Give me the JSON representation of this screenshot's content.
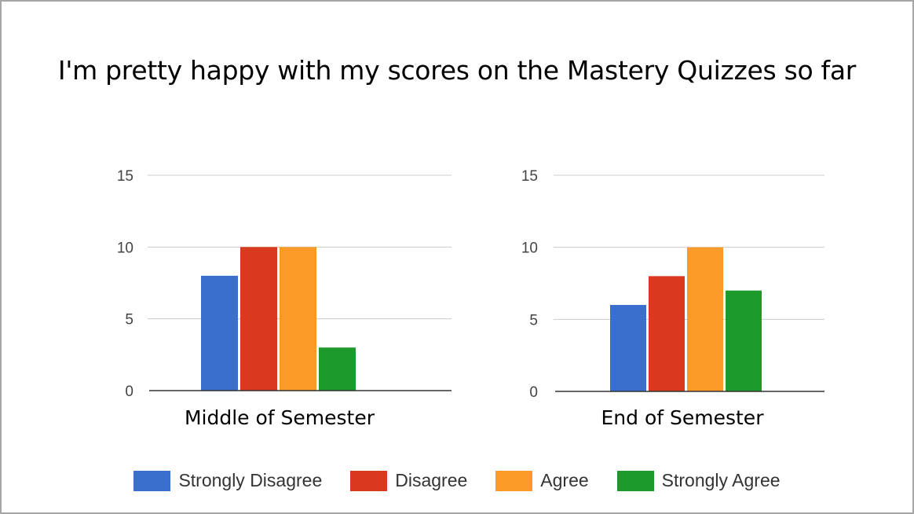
{
  "chart_data": {
    "type": "bar",
    "title": "I'm pretty happy with my scores on the Mastery Quizzes so far",
    "legend_position": "bottom",
    "grid": true,
    "series_names": [
      "Strongly Disagree",
      "Disagree",
      "Agree",
      "Strongly Agree"
    ],
    "colors": [
      "#3b6fcf",
      "#d9391f",
      "#fb9a27",
      "#1d9a2b"
    ],
    "panels": [
      {
        "category": "Middle of Semester",
        "ylim": [
          0,
          15
        ],
        "yticks": [
          "0",
          "5",
          "10",
          "15"
        ],
        "values": [
          8,
          10,
          10,
          3
        ]
      },
      {
        "category": "End of Semester",
        "ylim": [
          0,
          15
        ],
        "yticks": [
          "0",
          "5",
          "10",
          "15"
        ],
        "values": [
          6,
          8,
          10,
          7
        ]
      }
    ]
  }
}
